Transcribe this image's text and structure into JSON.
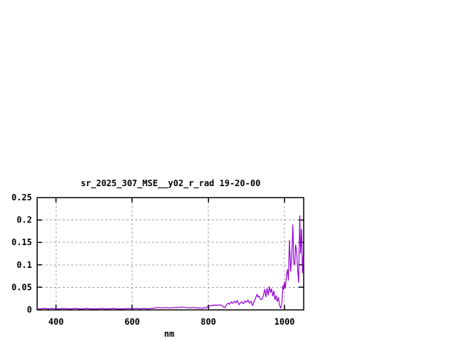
{
  "page": {
    "background_color": "#ffffff",
    "title": "sr_2025_307_MSE__y02_r_rad 19-20-00"
  },
  "chart_data": {
    "type": "line",
    "title": "sr_2025_307_MSE__y02_r_rad 19-20-00",
    "xlabel": "nm",
    "ylabel": "",
    "xlim": [
      350,
      1050
    ],
    "ylim": [
      0,
      0.25
    ],
    "xticks": [
      400,
      600,
      800,
      1000
    ],
    "xtick_labels": [
      "400",
      "600",
      "800",
      "1000"
    ],
    "yticks": [
      0,
      0.05,
      0.1,
      0.15,
      0.2,
      0.25
    ],
    "ytick_labels": [
      "0",
      "0.05",
      "0.1",
      "0.15",
      "0.2",
      "0.25"
    ],
    "grid": true,
    "grid_style": "dashed",
    "legend_position": "none",
    "line_color": "#9400d3",
    "grid_color": "#a0a0a0",
    "border_color": "#000000",
    "series": [
      {
        "name": "sr_2025_307_MSE__y02_r_rad 19-20-00",
        "points": [
          [
            350,
            0.002
          ],
          [
            360,
            0.002
          ],
          [
            370,
            0.003
          ],
          [
            380,
            0.002
          ],
          [
            390,
            0.003
          ],
          [
            400,
            0.002
          ],
          [
            410,
            0.002
          ],
          [
            420,
            0.003
          ],
          [
            430,
            0.002
          ],
          [
            440,
            0.002
          ],
          [
            450,
            0.003
          ],
          [
            460,
            0.002
          ],
          [
            470,
            0.002
          ],
          [
            480,
            0.003
          ],
          [
            490,
            0.002
          ],
          [
            500,
            0.002
          ],
          [
            510,
            0.002
          ],
          [
            520,
            0.003
          ],
          [
            530,
            0.002
          ],
          [
            540,
            0.002
          ],
          [
            550,
            0.003
          ],
          [
            560,
            0.002
          ],
          [
            570,
            0.002
          ],
          [
            580,
            0.002
          ],
          [
            590,
            0.003
          ],
          [
            600,
            0.002
          ],
          [
            610,
            0.003
          ],
          [
            620,
            0.002
          ],
          [
            630,
            0.003
          ],
          [
            640,
            0.002
          ],
          [
            650,
            0.003
          ],
          [
            660,
            0.004
          ],
          [
            670,
            0.005
          ],
          [
            680,
            0.004
          ],
          [
            690,
            0.005
          ],
          [
            700,
            0.004
          ],
          [
            710,
            0.005
          ],
          [
            720,
            0.005
          ],
          [
            730,
            0.006
          ],
          [
            740,
            0.005
          ],
          [
            750,
            0.004
          ],
          [
            760,
            0.005
          ],
          [
            770,
            0.004
          ],
          [
            780,
            0.004
          ],
          [
            785,
            0.003
          ],
          [
            790,
            0.005
          ],
          [
            795,
            0.004
          ],
          [
            800,
            0.009
          ],
          [
            804,
            0.008
          ],
          [
            808,
            0.01
          ],
          [
            812,
            0.009
          ],
          [
            816,
            0.011
          ],
          [
            820,
            0.009
          ],
          [
            824,
            0.011
          ],
          [
            828,
            0.01
          ],
          [
            832,
            0.011
          ],
          [
            836,
            0.009
          ],
          [
            840,
            0.006
          ],
          [
            844,
            0.005
          ],
          [
            848,
            0.012
          ],
          [
            852,
            0.015
          ],
          [
            856,
            0.012
          ],
          [
            860,
            0.018
          ],
          [
            864,
            0.014
          ],
          [
            868,
            0.019
          ],
          [
            872,
            0.015
          ],
          [
            876,
            0.021
          ],
          [
            880,
            0.011
          ],
          [
            884,
            0.015
          ],
          [
            888,
            0.018
          ],
          [
            892,
            0.013
          ],
          [
            896,
            0.02
          ],
          [
            900,
            0.016
          ],
          [
            904,
            0.022
          ],
          [
            908,
            0.014
          ],
          [
            912,
            0.019
          ],
          [
            916,
            0.009
          ],
          [
            920,
            0.018
          ],
          [
            924,
            0.026
          ],
          [
            928,
            0.035
          ],
          [
            930,
            0.028
          ],
          [
            933,
            0.031
          ],
          [
            936,
            0.024
          ],
          [
            940,
            0.022
          ],
          [
            944,
            0.03
          ],
          [
            948,
            0.046
          ],
          [
            951,
            0.028
          ],
          [
            954,
            0.048
          ],
          [
            957,
            0.032
          ],
          [
            960,
            0.052
          ],
          [
            963,
            0.038
          ],
          [
            966,
            0.047
          ],
          [
            969,
            0.03
          ],
          [
            972,
            0.042
          ],
          [
            975,
            0.022
          ],
          [
            978,
            0.032
          ],
          [
            981,
            0.018
          ],
          [
            984,
            0.028
          ],
          [
            987,
            0.01
          ],
          [
            990,
            0.003
          ],
          [
            993,
            0.014
          ],
          [
            996,
            0.055
          ],
          [
            998,
            0.045
          ],
          [
            1000,
            0.062
          ],
          [
            1002,
            0.048
          ],
          [
            1005,
            0.075
          ],
          [
            1008,
            0.09
          ],
          [
            1010,
            0.065
          ],
          [
            1013,
            0.155
          ],
          [
            1016,
            0.085
          ],
          [
            1019,
            0.12
          ],
          [
            1022,
            0.19
          ],
          [
            1024,
            0.105
          ],
          [
            1027,
            0.1
          ],
          [
            1029,
            0.145
          ],
          [
            1032,
            0.13
          ],
          [
            1034,
            0.095
          ],
          [
            1037,
            0.06
          ],
          [
            1040,
            0.21
          ],
          [
            1042,
            0.125
          ],
          [
            1045,
            0.18
          ],
          [
            1047,
            0.082
          ],
          [
            1049,
            0.12
          ],
          [
            1050,
            0.1
          ]
        ]
      }
    ]
  }
}
